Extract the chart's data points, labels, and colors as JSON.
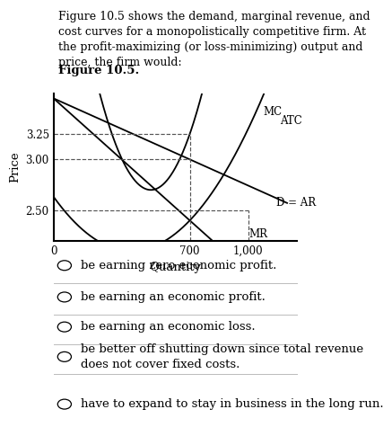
{
  "title_text": "Figure 10.5 shows the demand, marginal revenue, and\ncost curves for a monopolistically competitive firm. At\nthe profit-maximizing (or loss-minimizing) output and\nprice, the firm would:",
  "figure_label": "Figure 10.5.",
  "xlabel": "Quantity",
  "ylabel": "Price",
  "x_ticks": [
    0,
    700,
    1000
  ],
  "x_tick_labels": [
    "0",
    "700",
    "1,000"
  ],
  "y_ticks": [
    2.5,
    3.0,
    3.25
  ],
  "y_tick_labels": [
    "2.50",
    "3.00",
    "3.25"
  ],
  "xlim": [
    0,
    1250
  ],
  "ylim": [
    2.2,
    3.65
  ],
  "curve_color": "#000000",
  "dashed_color": "#555555",
  "options": [
    "be earning zero economic profit.",
    "be earning an economic profit.",
    "be earning an economic loss.",
    "be better off shutting down since total revenue\ndoes not cover fixed costs.",
    "have to expand to stay in business in the long run."
  ],
  "bg_color": "#ffffff",
  "text_color": "#000000",
  "font_size_title": 9.0,
  "font_size_fig_label": 9.5,
  "font_size_options": 9.5,
  "font_size_axis_label": 9.5,
  "font_size_tick": 8.5,
  "font_size_curve_label": 8.5
}
